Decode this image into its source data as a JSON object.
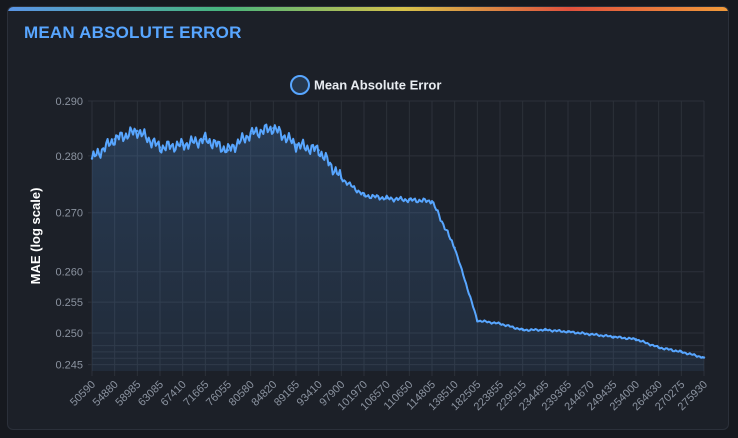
{
  "panel": {
    "title": "MEAN ABSOLUTE ERROR"
  },
  "colors": {
    "line": "#58a6ff",
    "title": "#58a6ff",
    "grid": "#2c313a"
  },
  "chart_data": {
    "type": "area",
    "title": "",
    "legend": {
      "label": "Mean Absolute Error",
      "position": "top-center"
    },
    "ylabel": "MAE (log scale)",
    "xlabel": "",
    "y_scale": "log",
    "ylim": [
      0.244,
      0.29
    ],
    "y_ticks": [
      0.245,
      0.25,
      0.255,
      0.26,
      0.27,
      0.28,
      0.29
    ],
    "y_tick_labels": [
      "0.245",
      "0.250",
      "0.255",
      "0.260",
      "0.270",
      "0.280",
      "0.290"
    ],
    "x_tick_labels": [
      "50590",
      "54880",
      "58985",
      "63085",
      "67410",
      "71665",
      "76055",
      "80580",
      "84820",
      "89165",
      "93410",
      "97900",
      "101970",
      "106570",
      "110650",
      "114805",
      "138510",
      "182505",
      "223855",
      "229515",
      "234495",
      "239365",
      "244670",
      "249435",
      "254000",
      "264630",
      "270275",
      "275930"
    ],
    "grid": true,
    "series": [
      {
        "name": "Mean Absolute Error",
        "x_index": [
          0,
          1,
          2,
          3,
          4,
          5,
          6,
          7,
          8,
          9,
          10,
          11,
          12,
          13,
          14,
          15,
          16,
          17,
          18,
          19,
          20,
          21,
          22,
          23,
          24,
          25,
          26,
          27
        ],
        "values": [
          0.2795,
          0.283,
          0.2845,
          0.2815,
          0.282,
          0.283,
          0.281,
          0.284,
          0.285,
          0.282,
          0.281,
          0.276,
          0.273,
          0.2725,
          0.2722,
          0.272,
          0.264,
          0.252,
          0.2515,
          0.2505,
          0.2505,
          0.2502,
          0.2498,
          0.2494,
          0.249,
          0.2477,
          0.247,
          0.2461
        ]
      }
    ]
  }
}
